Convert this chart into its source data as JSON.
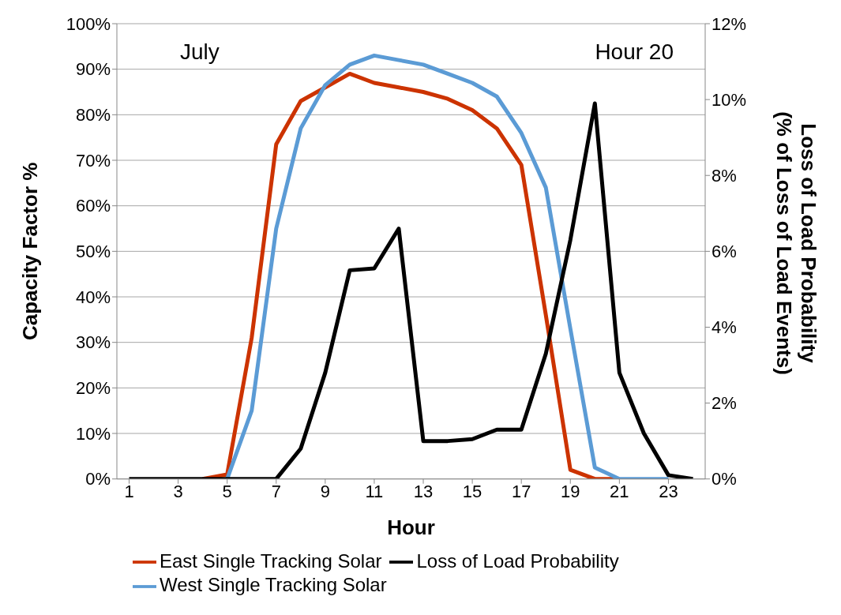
{
  "chart_data": {
    "type": "line",
    "xlabel": "Hour",
    "ylabel": "Capacity Factor %",
    "y2label": "Loss of Load Probability\n(% of Loss of Load Events)",
    "annotations": [
      "July",
      "Hour 20"
    ],
    "x": [
      1,
      2,
      3,
      4,
      5,
      6,
      7,
      8,
      9,
      10,
      11,
      12,
      13,
      14,
      15,
      16,
      17,
      18,
      19,
      20,
      21,
      22,
      23,
      24
    ],
    "xlim": [
      0.5,
      24.5
    ],
    "xticks": [
      1,
      3,
      5,
      7,
      9,
      11,
      13,
      15,
      17,
      19,
      21,
      23
    ],
    "ylim": [
      0,
      100
    ],
    "yticks": [
      {
        "value": 0,
        "label": "0%"
      },
      {
        "value": 10,
        "label": "10%"
      },
      {
        "value": 20,
        "label": "20%"
      },
      {
        "value": 30,
        "label": "30%"
      },
      {
        "value": 40,
        "label": "40%"
      },
      {
        "value": 50,
        "label": "50%"
      },
      {
        "value": 60,
        "label": "60%"
      },
      {
        "value": 70,
        "label": "70%"
      },
      {
        "value": 80,
        "label": "80%"
      },
      {
        "value": 90,
        "label": "90%"
      },
      {
        "value": 100,
        "label": "100%"
      }
    ],
    "y2lim": [
      0,
      12
    ],
    "y2ticks": [
      {
        "value": 0,
        "label": "0%"
      },
      {
        "value": 2,
        "label": "2%"
      },
      {
        "value": 4,
        "label": "4%"
      },
      {
        "value": 6,
        "label": "6%"
      },
      {
        "value": 8,
        "label": "8%"
      },
      {
        "value": 10,
        "label": "10%"
      },
      {
        "value": 12,
        "label": "12%"
      }
    ],
    "grid": "y",
    "legend": "bottom",
    "marker": "none",
    "line_style": "solid",
    "series": [
      {
        "name": "East Single Tracking Solar",
        "color": "#cc3300",
        "values": [
          null,
          null,
          null,
          0,
          1,
          31,
          73.5,
          83,
          86,
          89,
          87,
          86,
          85,
          83.5,
          81,
          77,
          69,
          36,
          2,
          0,
          0,
          null,
          null,
          null
        ]
      },
      {
        "name": "West Single Tracking Solar",
        "color": "#5b9bd5",
        "values": [
          null,
          null,
          null,
          null,
          0,
          15,
          55,
          77,
          86.5,
          91,
          93,
          92,
          91,
          89,
          87,
          84,
          76,
          64,
          33,
          2.5,
          0,
          0,
          0,
          null
        ]
      },
      {
        "name": "Loss of Load Probability",
        "color": "#000000",
        "axis": "y2",
        "values": [
          0,
          0,
          0,
          0,
          0,
          0,
          0,
          0.8,
          2.8,
          5.5,
          5.55,
          6.6,
          1,
          1,
          1.05,
          1.3,
          1.3,
          3.3,
          6.3,
          9.9,
          2.8,
          1.2,
          0.1,
          0
        ]
      }
    ]
  }
}
